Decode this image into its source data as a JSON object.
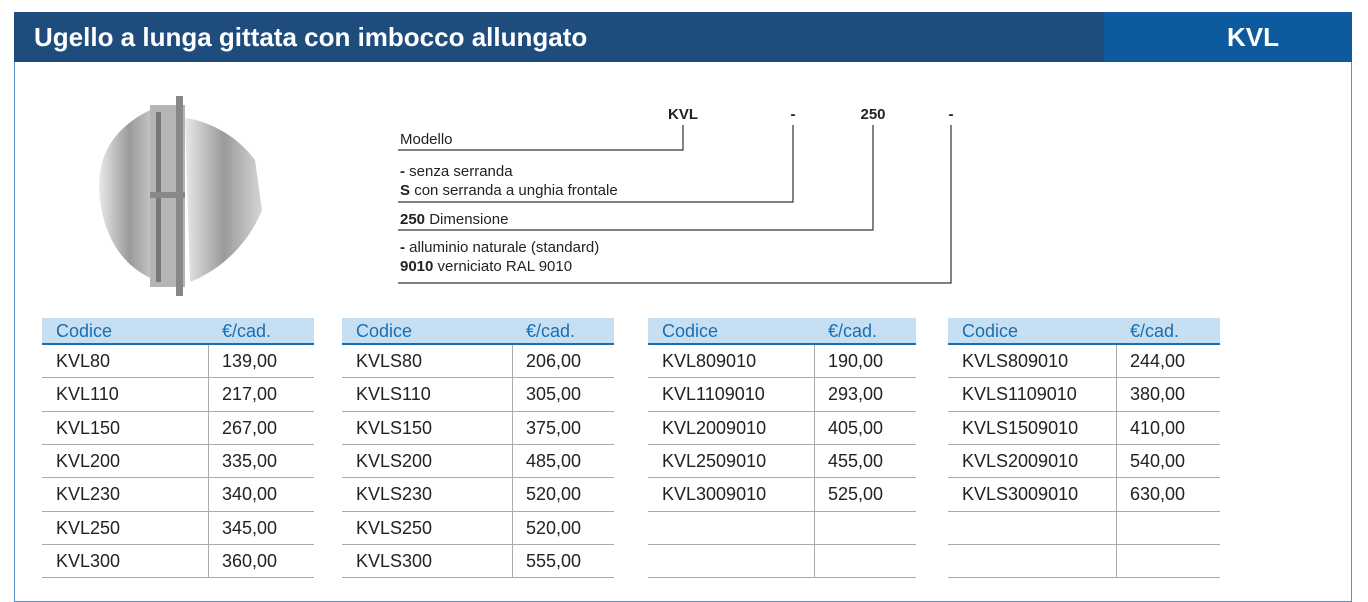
{
  "header": {
    "title": "Ugello a lunga gittata con imbocco allungato",
    "code": "KVL"
  },
  "code_diagram": {
    "parts": [
      "KVL",
      "-",
      "250",
      "-"
    ],
    "legend": [
      {
        "lines": [
          {
            "text": "Modello"
          }
        ]
      },
      {
        "lines": [
          {
            "key": "-",
            "text": "senza serranda"
          },
          {
            "key": "S",
            "text": "con serranda a unghia frontale"
          }
        ]
      },
      {
        "lines": [
          {
            "key": "250",
            "text": "Dimensione"
          }
        ]
      },
      {
        "lines": [
          {
            "key": "-",
            "text": "alluminio naturale (standard)"
          },
          {
            "key": "9010",
            "text": "verniciato RAL 9010"
          }
        ]
      }
    ]
  },
  "tables": [
    {
      "columns": [
        "Codice",
        "€/cad."
      ],
      "rows": [
        [
          "KVL80",
          "139,00"
        ],
        [
          "KVL110",
          "217,00"
        ],
        [
          "KVL150",
          "267,00"
        ],
        [
          "KVL200",
          "335,00"
        ],
        [
          "KVL230",
          "340,00"
        ],
        [
          "KVL250",
          "345,00"
        ],
        [
          "KVL300",
          "360,00"
        ]
      ]
    },
    {
      "columns": [
        "Codice",
        "€/cad."
      ],
      "rows": [
        [
          "KVLS80",
          "206,00"
        ],
        [
          "KVLS110",
          "305,00"
        ],
        [
          "KVLS150",
          "375,00"
        ],
        [
          "KVLS200",
          "485,00"
        ],
        [
          "KVLS230",
          "520,00"
        ],
        [
          "KVLS250",
          "520,00"
        ],
        [
          "KVLS300",
          "555,00"
        ]
      ]
    },
    {
      "columns": [
        "Codice",
        "€/cad."
      ],
      "rows": [
        [
          "KVL809010",
          "190,00"
        ],
        [
          "KVL1109010",
          "293,00"
        ],
        [
          "KVL2009010",
          "405,00"
        ],
        [
          "KVL2509010",
          "455,00"
        ],
        [
          "KVL3009010",
          "525,00"
        ]
      ]
    },
    {
      "columns": [
        "Codice",
        "€/cad."
      ],
      "rows": [
        [
          "KVLS809010",
          "244,00"
        ],
        [
          "KVLS1109010",
          "380,00"
        ],
        [
          "KVLS1509010",
          "410,00"
        ],
        [
          "KVLS2009010",
          "540,00"
        ],
        [
          "KVLS3009010",
          "630,00"
        ]
      ]
    }
  ]
}
